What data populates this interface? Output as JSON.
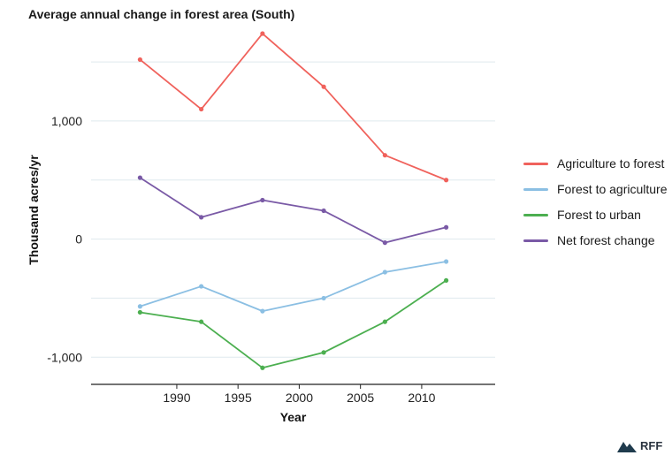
{
  "title": "Average annual change in forest area (South)",
  "logo": {
    "text": "RFF",
    "icon": "mountain-logo-icon"
  },
  "chart_data": {
    "type": "line",
    "xlabel": "Year",
    "ylabel": "Thousand acres/yr",
    "xlim": [
      1983,
      2016
    ],
    "ylim": [
      -1230,
      1800
    ],
    "xticks": [
      1990,
      1995,
      2000,
      2005,
      2010
    ],
    "yticks": [
      -1000,
      0,
      1000
    ],
    "ytick_labels": [
      "-1,000",
      "0",
      "1,000"
    ],
    "grid": "horizontal",
    "legend_position": "right",
    "x": [
      1987,
      1992,
      1997,
      2002,
      2007,
      2012
    ],
    "series": [
      {
        "name": "Agriculture to forest",
        "color": "#f0625c",
        "values": [
          1520,
          1100,
          1740,
          1290,
          710,
          500
        ]
      },
      {
        "name": "Forest to agriculture",
        "color": "#8bbfe3",
        "values": [
          -570,
          -400,
          -610,
          -500,
          -280,
          -190
        ]
      },
      {
        "name": "Forest to urban",
        "color": "#4caf50",
        "values": [
          -620,
          -700,
          -1090,
          -960,
          -700,
          -350
        ]
      },
      {
        "name": "Net forest change",
        "color": "#7a5aa6",
        "values": [
          520,
          185,
          330,
          240,
          -30,
          100
        ]
      }
    ]
  }
}
